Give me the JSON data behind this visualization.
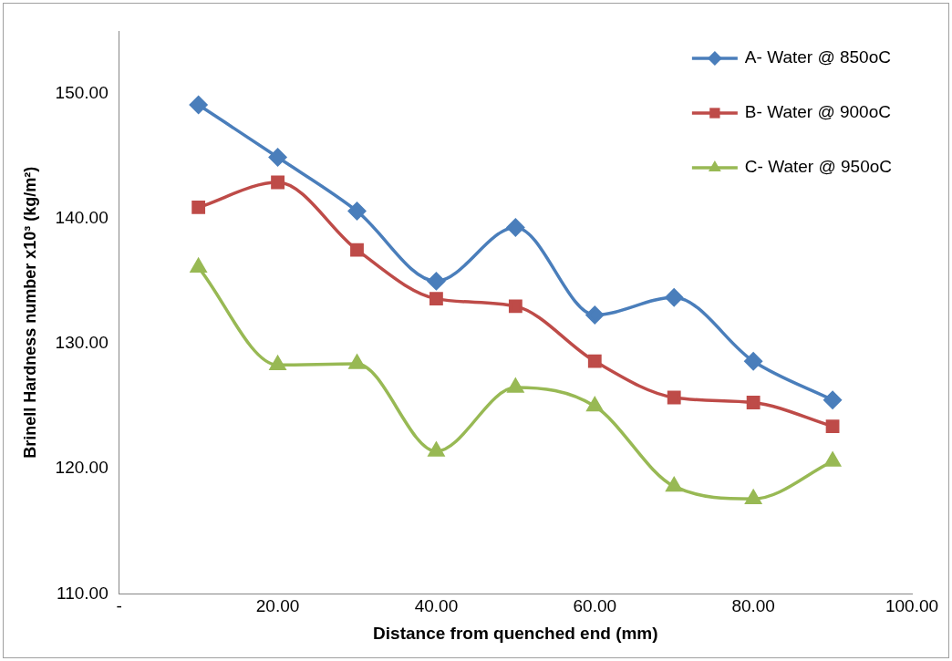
{
  "chart_data": {
    "type": "line",
    "xlabel": "Distance from quenched end (mm)",
    "ylabel": "Brinell Hardness number x10³ (kg/m²)",
    "x": [
      10,
      20,
      30,
      40,
      50,
      60,
      70,
      80,
      90
    ],
    "series": [
      {
        "name": "A- Water @ 850oC",
        "color": "#4a7ebb",
        "marker": "diamond",
        "values": [
          149.1,
          144.9,
          140.6,
          135.0,
          139.3,
          132.3,
          133.7,
          128.6,
          125.5
        ]
      },
      {
        "name": "B- Water @ 900oC",
        "color": "#be4b48",
        "marker": "square",
        "values": [
          140.9,
          142.9,
          137.5,
          133.6,
          133.0,
          128.6,
          125.7,
          125.3,
          123.4
        ]
      },
      {
        "name": "C- Water @ 950oC",
        "color": "#98b954",
        "marker": "triangle",
        "values": [
          136.1,
          128.3,
          128.4,
          121.4,
          126.5,
          125.0,
          118.6,
          117.6,
          120.6
        ]
      }
    ],
    "xlim": [
      0,
      100
    ],
    "xticks": [
      {
        "value": 0,
        "label": "-"
      },
      {
        "value": 20,
        "label": "20.00"
      },
      {
        "value": 40,
        "label": "40.00"
      },
      {
        "value": 60,
        "label": "60.00"
      },
      {
        "value": 80,
        "label": "80.00"
      },
      {
        "value": 100,
        "label": "100.00"
      }
    ],
    "ylim": [
      110,
      155
    ],
    "yticks": [
      {
        "value": 110,
        "label": "110.00"
      },
      {
        "value": 120,
        "label": "120.00"
      },
      {
        "value": 130,
        "label": "130.00"
      },
      {
        "value": 140,
        "label": "140.00"
      },
      {
        "value": 150,
        "label": "150.00"
      }
    ],
    "grid": false,
    "legend": "top right",
    "line_style": "solid"
  }
}
